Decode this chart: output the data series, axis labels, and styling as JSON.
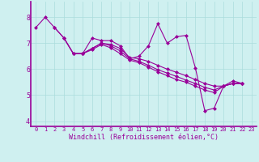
{
  "background_color": "#cff0f0",
  "line_color": "#990099",
  "grid_color": "#aadddd",
  "xlabel": "Windchill (Refroidissement éolien,°C)",
  "yticks": [
    4,
    5,
    6,
    7,
    8
  ],
  "xticks": [
    0,
    1,
    2,
    3,
    4,
    5,
    6,
    7,
    8,
    9,
    10,
    11,
    12,
    13,
    14,
    15,
    16,
    17,
    18,
    19,
    20,
    21,
    22,
    23
  ],
  "xlim": [
    -0.5,
    23.5
  ],
  "ylim": [
    3.8,
    8.6
  ],
  "lines": [
    {
      "x": [
        0,
        1,
        2,
        3,
        4,
        5,
        6,
        7,
        8,
        9,
        10,
        11,
        12,
        13,
        14,
        15,
        16,
        17,
        18,
        19,
        20,
        21,
        22
      ],
      "y": [
        7.6,
        8.0,
        7.6,
        7.2,
        6.6,
        6.6,
        7.2,
        7.1,
        7.1,
        6.9,
        6.4,
        6.5,
        6.9,
        7.75,
        7.0,
        7.25,
        7.3,
        6.05,
        4.4,
        4.5,
        5.35,
        5.55,
        5.45
      ]
    },
    {
      "x": [
        2,
        3,
        4,
        5,
        6,
        7,
        8,
        9,
        10,
        11,
        12,
        13,
        14,
        15,
        16,
        17,
        18,
        19,
        20,
        21,
        22
      ],
      "y": [
        7.6,
        7.2,
        6.6,
        6.6,
        6.8,
        7.0,
        6.95,
        6.8,
        6.45,
        6.4,
        6.3,
        6.15,
        6.0,
        5.88,
        5.75,
        5.6,
        5.45,
        5.35,
        5.35,
        5.45,
        5.45
      ]
    },
    {
      "x": [
        3,
        4,
        5,
        6,
        7,
        8,
        9,
        10,
        11,
        12,
        13,
        14,
        15,
        16,
        17,
        18,
        19,
        20,
        21,
        22
      ],
      "y": [
        7.2,
        6.6,
        6.6,
        6.8,
        7.0,
        6.9,
        6.7,
        6.4,
        6.3,
        6.15,
        5.98,
        5.85,
        5.72,
        5.58,
        5.45,
        5.3,
        5.2,
        5.35,
        5.45,
        5.45
      ]
    },
    {
      "x": [
        5,
        6,
        7,
        8,
        9,
        10,
        11,
        12,
        13,
        14,
        15,
        16,
        17,
        18,
        19,
        20,
        21,
        22
      ],
      "y": [
        6.6,
        6.75,
        6.95,
        6.82,
        6.6,
        6.35,
        6.25,
        6.08,
        5.9,
        5.75,
        5.6,
        5.5,
        5.35,
        5.2,
        5.1,
        5.35,
        5.45,
        5.45
      ]
    }
  ]
}
